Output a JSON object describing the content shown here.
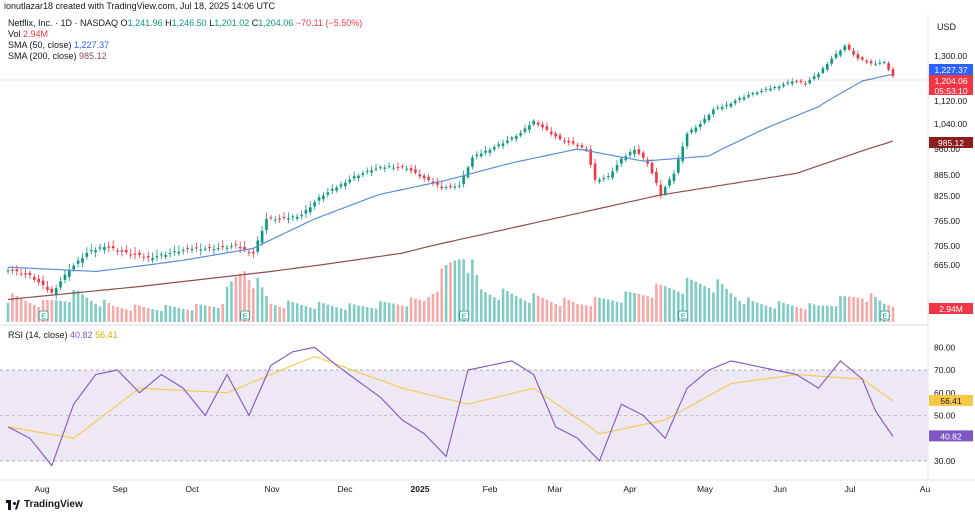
{
  "header": {
    "credit": "ionutlazar18 created with TradingView.com, Jul 18, 2025 14:06 UTC",
    "symbol": "Netflix, Inc. · 1D · NASDAQ",
    "o_label": "O",
    "o": "1,241.96",
    "h_label": "H",
    "h": "1,246.50",
    "l_label": "L",
    "l": "1,201.02",
    "c_label": "C",
    "c": "1,204.06",
    "change": "−70.11 (−5.50%)",
    "vol_label": "Vol",
    "vol": "2.94M",
    "sma50_label": "SMA (50, close)",
    "sma50": "1,227.37",
    "sma200_label": "SMA (200, close)",
    "sma200": "985.12",
    "rsi_label": "RSI (14, close)",
    "rsi": "40.82",
    "rsi_ma": "56.41",
    "currency": "USD",
    "brand": "TradingView"
  },
  "colors": {
    "up": "#089981",
    "down": "#f23645",
    "vol_up": "#80cbc4",
    "vol_down": "#f7a9a7",
    "sma50": "#5b8fd8",
    "sma200": "#8d4f4f",
    "rsi": "#7e57c2",
    "rsi_ma": "#f7c948",
    "rsi_band": "#ede7f6"
  },
  "chart_data": {
    "type": "candlestick",
    "price_axis": {
      "ticks": [
        665,
        705,
        765,
        825,
        885,
        960,
        1040,
        1120,
        1300
      ]
    },
    "x_axis": {
      "labels": [
        "Aug",
        "Sep",
        "Oct",
        "Nov",
        "Dec",
        "2025",
        "Feb",
        "Mar",
        "Apr",
        "May",
        "Jun",
        "Jul",
        "Au"
      ]
    },
    "last": {
      "price": "1,204.06",
      "countdown": "05:53:10",
      "sma50": "1,227.37",
      "sma200": "985.12",
      "vol": "2.94M"
    },
    "earnings_marker": "E",
    "price_path": [
      [
        0,
        655
      ],
      [
        5,
        640
      ],
      [
        10,
        600
      ],
      [
        14,
        655
      ],
      [
        18,
        690
      ],
      [
        22,
        705
      ],
      [
        27,
        690
      ],
      [
        32,
        680
      ],
      [
        37,
        690
      ],
      [
        42,
        700
      ],
      [
        47,
        700
      ],
      [
        52,
        705
      ],
      [
        56,
        690
      ],
      [
        59,
        770
      ],
      [
        63,
        770
      ],
      [
        67,
        780
      ],
      [
        71,
        820
      ],
      [
        75,
        850
      ],
      [
        79,
        880
      ],
      [
        83,
        900
      ],
      [
        87,
        910
      ],
      [
        91,
        905
      ],
      [
        95,
        875
      ],
      [
        99,
        850
      ],
      [
        103,
        855
      ],
      [
        106,
        935
      ],
      [
        110,
        960
      ],
      [
        113,
        980
      ],
      [
        117,
        1010
      ],
      [
        120,
        1050
      ],
      [
        123,
        1020
      ],
      [
        126,
        990
      ],
      [
        129,
        975
      ],
      [
        132,
        960
      ],
      [
        134,
        870
      ],
      [
        137,
        880
      ],
      [
        140,
        930
      ],
      [
        143,
        960
      ],
      [
        146,
        920
      ],
      [
        149,
        830
      ],
      [
        152,
        890
      ],
      [
        155,
        1010
      ],
      [
        158,
        1040
      ],
      [
        161,
        1090
      ],
      [
        164,
        1105
      ],
      [
        167,
        1130
      ],
      [
        170,
        1150
      ],
      [
        173,
        1165
      ],
      [
        176,
        1180
      ],
      [
        179,
        1200
      ],
      [
        182,
        1190
      ],
      [
        185,
        1230
      ],
      [
        188,
        1290
      ],
      [
        191,
        1340
      ],
      [
        194,
        1290
      ],
      [
        197,
        1270
      ],
      [
        200,
        1275
      ],
      [
        202,
        1220
      ]
    ],
    "sma50_path": [
      [
        0,
        660
      ],
      [
        20,
        650
      ],
      [
        40,
        675
      ],
      [
        56,
        700
      ],
      [
        70,
        770
      ],
      [
        85,
        830
      ],
      [
        100,
        870
      ],
      [
        115,
        920
      ],
      [
        130,
        960
      ],
      [
        145,
        925
      ],
      [
        160,
        940
      ],
      [
        172,
        1020
      ],
      [
        185,
        1100
      ],
      [
        195,
        1200
      ],
      [
        202,
        1227
      ]
    ],
    "sma200_path": [
      [
        0,
        585
      ],
      [
        30,
        615
      ],
      [
        60,
        650
      ],
      [
        90,
        690
      ],
      [
        120,
        760
      ],
      [
        150,
        830
      ],
      [
        180,
        890
      ],
      [
        202,
        985
      ]
    ],
    "volume_path": [
      [
        0,
        4.0
      ],
      [
        8,
        3.0
      ],
      [
        16,
        4.5
      ],
      [
        24,
        2.5
      ],
      [
        32,
        2.3
      ],
      [
        40,
        2.3
      ],
      [
        48,
        2.7
      ],
      [
        54,
        9.0
      ],
      [
        60,
        3.0
      ],
      [
        80,
        2.5
      ],
      [
        95,
        3.5
      ],
      [
        104,
        12.0
      ],
      [
        108,
        5.0
      ],
      [
        130,
        3.0
      ],
      [
        140,
        4.0
      ],
      [
        150,
        5.5
      ],
      [
        160,
        6.5
      ],
      [
        170,
        3.0
      ],
      [
        185,
        2.5
      ],
      [
        195,
        4.5
      ],
      [
        200,
        3.0
      ],
      [
        202,
        2.94
      ]
    ],
    "rsi_axis": {
      "ticks": [
        30.0,
        50.0,
        60.0,
        70.0,
        80.0
      ],
      "bands": [
        30,
        50,
        70
      ]
    },
    "rsi_path": [
      [
        0,
        45
      ],
      [
        5,
        40
      ],
      [
        10,
        28
      ],
      [
        15,
        55
      ],
      [
        20,
        68
      ],
      [
        25,
        70
      ],
      [
        30,
        60
      ],
      [
        35,
        68
      ],
      [
        40,
        62
      ],
      [
        45,
        50
      ],
      [
        50,
        68
      ],
      [
        55,
        50
      ],
      [
        60,
        72
      ],
      [
        65,
        78
      ],
      [
        70,
        80
      ],
      [
        75,
        72
      ],
      [
        80,
        65
      ],
      [
        85,
        58
      ],
      [
        90,
        48
      ],
      [
        95,
        42
      ],
      [
        100,
        32
      ],
      [
        105,
        70
      ],
      [
        110,
        72
      ],
      [
        115,
        74
      ],
      [
        120,
        68
      ],
      [
        125,
        45
      ],
      [
        130,
        40
      ],
      [
        135,
        30
      ],
      [
        140,
        55
      ],
      [
        145,
        50
      ],
      [
        150,
        40
      ],
      [
        155,
        62
      ],
      [
        160,
        70
      ],
      [
        165,
        74
      ],
      [
        170,
        72
      ],
      [
        175,
        70
      ],
      [
        180,
        68
      ],
      [
        185,
        62
      ],
      [
        190,
        74
      ],
      [
        195,
        66
      ],
      [
        198,
        52
      ],
      [
        202,
        40.82
      ]
    ],
    "rsi_ma_path": [
      [
        0,
        45
      ],
      [
        15,
        40
      ],
      [
        30,
        62
      ],
      [
        50,
        60
      ],
      [
        70,
        76
      ],
      [
        90,
        62
      ],
      [
        105,
        55
      ],
      [
        120,
        62
      ],
      [
        135,
        42
      ],
      [
        150,
        48
      ],
      [
        165,
        64
      ],
      [
        180,
        68
      ],
      [
        195,
        66
      ],
      [
        202,
        56.41
      ]
    ]
  }
}
